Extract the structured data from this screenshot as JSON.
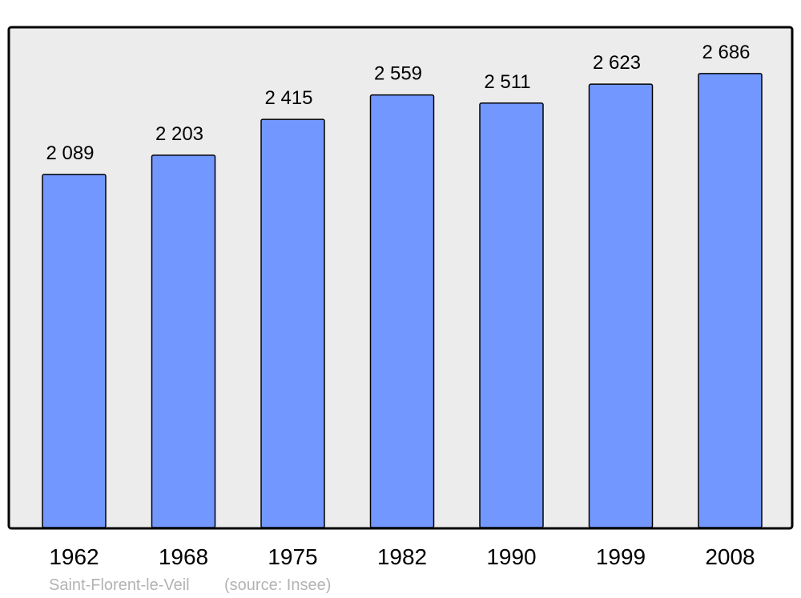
{
  "chart_data": {
    "type": "bar",
    "categories": [
      "1962",
      "1968",
      "1975",
      "1982",
      "1990",
      "1999",
      "2008"
    ],
    "values": [
      2089,
      2203,
      2415,
      2559,
      2511,
      2623,
      2686
    ],
    "data_labels": [
      "2 089",
      "2 203",
      "2 415",
      "2 559",
      "2 511",
      "2 623",
      "2 686"
    ],
    "ylim": [
      0,
      2960
    ],
    "grid": false,
    "colors": {
      "bar": "#7298ff",
      "plot_background": "#ececec",
      "border": "#000000"
    },
    "footer": {
      "place": "Saint-Florent-le-Veil",
      "source": "(source: Insee)"
    }
  }
}
